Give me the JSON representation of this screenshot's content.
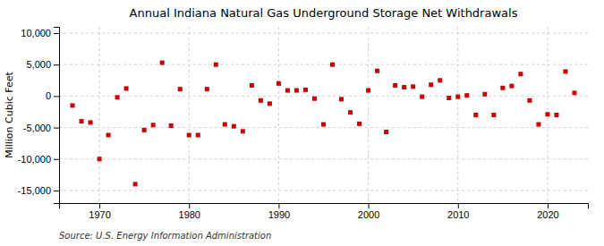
{
  "chart_data": {
    "type": "scatter",
    "title": "Annual Indiana Natural Gas Underground Storage Net Withdrawals",
    "ylabel": "Million Cubic Feet",
    "annotations": [
      "Source: U.S. Energy Information Administration"
    ],
    "x": [
      1967,
      1968,
      1969,
      1970,
      1971,
      1972,
      1973,
      1974,
      1975,
      1976,
      1977,
      1978,
      1979,
      1980,
      1981,
      1982,
      1983,
      1984,
      1985,
      1986,
      1987,
      1988,
      1989,
      1990,
      1991,
      1992,
      1993,
      1994,
      1995,
      1996,
      1997,
      1998,
      1999,
      2000,
      2001,
      2002,
      2003,
      2004,
      2005,
      2006,
      2007,
      2008,
      2009,
      2010,
      2011,
      2012,
      2013,
      2014,
      2015,
      2016,
      2017,
      2018,
      2019,
      2020,
      2021,
      2022,
      2023
    ],
    "values": [
      -1500,
      -4000,
      -4200,
      -10000,
      -6200,
      -200,
      1200,
      -14000,
      -5400,
      -4600,
      5300,
      -4700,
      1100,
      -6200,
      -6200,
      1100,
      5000,
      -4500,
      -4800,
      -5600,
      1700,
      -700,
      -1200,
      2000,
      900,
      900,
      1000,
      -400,
      -4500,
      5000,
      -500,
      -2600,
      -4400,
      900,
      4000,
      -5700,
      1700,
      1400,
      1500,
      -100,
      1800,
      2500,
      -300,
      -100,
      100,
      -3000,
      300,
      -3000,
      1300,
      1600,
      3500,
      -700,
      -4500,
      -2900,
      -3000,
      3900,
      500
    ],
    "color": "#cc0000",
    "marker": "square",
    "xlim": [
      1965.5,
      2024.5
    ],
    "xticks": [
      1970,
      1980,
      1990,
      2000,
      2010,
      2020
    ],
    "ylim": [
      -17000,
      11000
    ],
    "yticks": [
      {
        "value": -15000,
        "label": "-15,000"
      },
      {
        "value": -10000,
        "label": "-10,000"
      },
      {
        "value": -5000,
        "label": "-5,000"
      },
      0,
      {
        "value": 5000,
        "label": "5,000"
      },
      {
        "value": 10000,
        "label": "10,000"
      }
    ],
    "grid": true
  }
}
